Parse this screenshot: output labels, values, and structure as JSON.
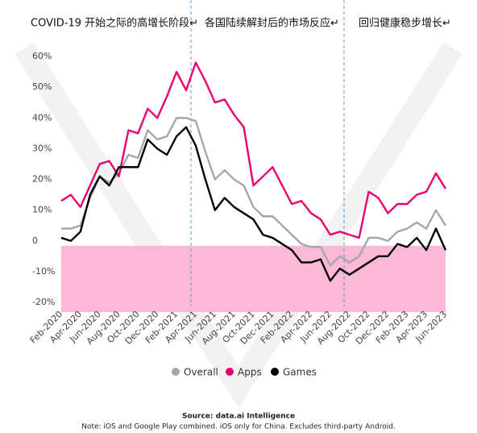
{
  "chart_data": {
    "type": "line",
    "annotations": [
      "COVID-19 开始之际的高增长阶段↵",
      "各国陆续解封后的市场反应↵",
      "回归健康稳步增长↵"
    ],
    "categories": [
      "Feb-2020",
      null,
      "Apr-2020",
      null,
      "Jun-2020",
      null,
      "Aug-2020",
      null,
      "Oct-2020",
      null,
      "Dec-2020",
      null,
      "Feb-2021",
      null,
      "Apr-2021",
      null,
      "Jun-2021",
      null,
      "Aug-2021",
      null,
      "Oct-2021",
      null,
      "Dec-2021",
      null,
      "Feb-2022",
      null,
      "Apr-2022",
      null,
      "Jun-2022",
      null,
      "Aug-2022",
      null,
      "Oct-2022",
      null,
      "Dec-2022",
      null,
      "Feb-2023",
      null,
      "Apr-2023",
      null,
      "Jun-2023"
    ],
    "series": [
      {
        "name": "Overall",
        "color": "#a6a6a6",
        "values": [
          4,
          4,
          5,
          14,
          21,
          19,
          22,
          28,
          27,
          36,
          33,
          34,
          40,
          40,
          39,
          29,
          20,
          23,
          20,
          18,
          11,
          8,
          8,
          5,
          2,
          -1,
          -2,
          -2,
          -8,
          -5,
          -7,
          -5,
          1,
          1,
          0,
          3,
          4,
          6,
          4,
          10,
          5
        ]
      },
      {
        "name": "Apps",
        "color": "#e8006f",
        "values": [
          13,
          15,
          11,
          18,
          25,
          26,
          21,
          36,
          35,
          43,
          40,
          47,
          55,
          49,
          58,
          52,
          45,
          46,
          41,
          37,
          18,
          21,
          24,
          18,
          12,
          13,
          9,
          7,
          2,
          3,
          2,
          1,
          16,
          14,
          9,
          12,
          12,
          15,
          16,
          22,
          17
        ]
      },
      {
        "name": "Games",
        "color": "#000000",
        "values": [
          1,
          0,
          3,
          15,
          21,
          18,
          24,
          24,
          24,
          33,
          30,
          28,
          34,
          37,
          31,
          20,
          10,
          14,
          11,
          9,
          7,
          2,
          1,
          -1,
          -3,
          -7,
          -7,
          -6,
          -13,
          -9,
          -11,
          -9,
          -7,
          -5,
          -5,
          -1,
          -2,
          1,
          -3,
          4,
          -3
        ]
      }
    ],
    "ylim": [
      -20,
      60
    ],
    "yticks": [
      {
        "value": -20,
        "label": "-20%"
      },
      {
        "value": -10,
        "label": "-10%"
      },
      0,
      {
        "value": 10,
        "label": "10%"
      },
      {
        "value": 20,
        "label": "20%"
      },
      {
        "value": 30,
        "label": "30%"
      },
      {
        "value": 40,
        "label": "40%"
      },
      {
        "value": 50,
        "label": "50%"
      },
      {
        "value": 60,
        "label": "60%"
      }
    ],
    "grid": false,
    "legend": "bottom",
    "source": "Source: data.ai Intelligence",
    "note": "Note: iOS and Google Play combined. iOS only for China. Excludes third-party Android."
  }
}
